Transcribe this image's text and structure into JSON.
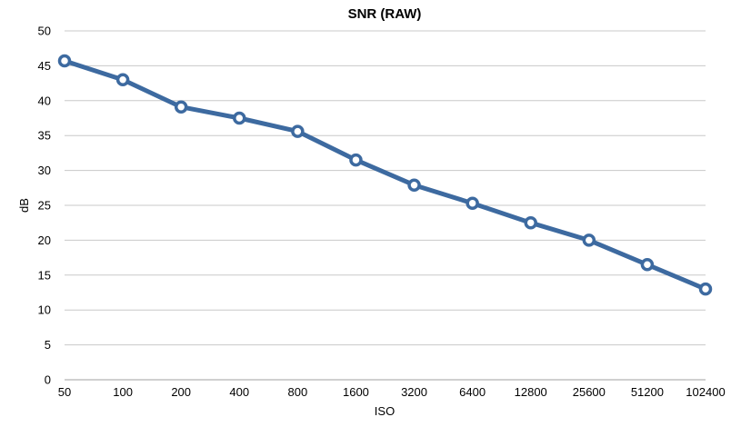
{
  "chart_data": {
    "type": "line",
    "title": "SNR (RAW)",
    "xlabel": "ISO",
    "ylabel": "dB",
    "categories": [
      "50",
      "100",
      "200",
      "400",
      "800",
      "1600",
      "3200",
      "6400",
      "12800",
      "25600",
      "51200",
      "102400"
    ],
    "series": [
      {
        "values": [
          45.7,
          43.0,
          39.1,
          37.5,
          35.6,
          31.5,
          27.9,
          25.3,
          22.5,
          20.0,
          16.5,
          13.0
        ],
        "color": "#3d6aa0"
      }
    ],
    "yticks": [
      0,
      5,
      10,
      15,
      20,
      25,
      30,
      35,
      40,
      45,
      50
    ],
    "ylim": [
      0,
      50
    ],
    "grid": true,
    "legend": "none"
  }
}
